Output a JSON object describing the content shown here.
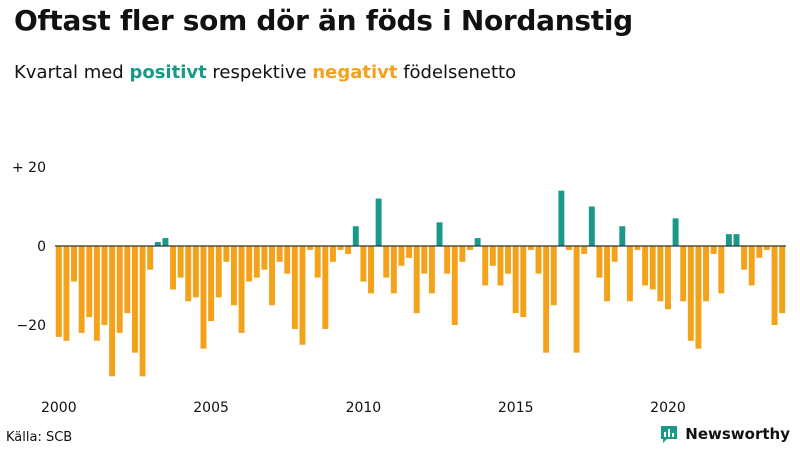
{
  "colors": {
    "positive": "#1a9988",
    "negative": "#f5a21b",
    "text": "#111111",
    "baseline": "#333333"
  },
  "header": {
    "title": "Oftast fler som dör än föds i Nordanstig",
    "subtitle_pre": "Kvartal med ",
    "subtitle_pos": "positivt",
    "subtitle_mid": " respektive ",
    "subtitle_neg": "negativt",
    "subtitle_post": " födelsenetto"
  },
  "footer": {
    "source": "Källa: SCB",
    "brand": "Newsworthy",
    "brand_icon": "bar-chart-icon"
  },
  "chart_data": {
    "type": "bar",
    "title": "Oftast fler som dör än föds i Nordanstig",
    "subtitle": "Kvartal med positivt respektive negativt födelsenetto",
    "xlabel": "",
    "ylabel": "",
    "ylim": [
      -36,
      24
    ],
    "y_ticks": [
      20,
      0,
      -20
    ],
    "y_tick_labels": [
      "+ 20",
      "0",
      "−20"
    ],
    "x_ticks": [
      2000,
      2005,
      2010,
      2015,
      2020
    ],
    "x_tick_labels": [
      "2000",
      "2005",
      "2010",
      "2015",
      "2020"
    ],
    "start_year": 2000,
    "quarters_per_year": 4,
    "categories": [
      "2000 Q1",
      "2000 Q2",
      "2000 Q3",
      "2000 Q4",
      "2001 Q1",
      "2001 Q2",
      "2001 Q3",
      "2001 Q4",
      "2002 Q1",
      "2002 Q2",
      "2002 Q3",
      "2002 Q4",
      "2003 Q1",
      "2003 Q2",
      "2003 Q3",
      "2003 Q4",
      "2004 Q1",
      "2004 Q2",
      "2004 Q3",
      "2004 Q4",
      "2005 Q1",
      "2005 Q2",
      "2005 Q3",
      "2005 Q4",
      "2006 Q1",
      "2006 Q2",
      "2006 Q3",
      "2006 Q4",
      "2007 Q1",
      "2007 Q2",
      "2007 Q3",
      "2007 Q4",
      "2008 Q1",
      "2008 Q2",
      "2008 Q3",
      "2008 Q4",
      "2009 Q1",
      "2009 Q2",
      "2009 Q3",
      "2009 Q4",
      "2010 Q1",
      "2010 Q2",
      "2010 Q3",
      "2010 Q4",
      "2011 Q1",
      "2011 Q2",
      "2011 Q3",
      "2011 Q4",
      "2012 Q1",
      "2012 Q2",
      "2012 Q3",
      "2012 Q4",
      "2013 Q1",
      "2013 Q2",
      "2013 Q3",
      "2013 Q4",
      "2014 Q1",
      "2014 Q2",
      "2014 Q3",
      "2014 Q4",
      "2015 Q1",
      "2015 Q2",
      "2015 Q3",
      "2015 Q4",
      "2016 Q1",
      "2016 Q2",
      "2016 Q3",
      "2016 Q4",
      "2017 Q1",
      "2017 Q2",
      "2017 Q3",
      "2017 Q4",
      "2018 Q1",
      "2018 Q2",
      "2018 Q3",
      "2018 Q4",
      "2019 Q1",
      "2019 Q2",
      "2019 Q3",
      "2019 Q4",
      "2020 Q1",
      "2020 Q2",
      "2020 Q3",
      "2020 Q4",
      "2021 Q1",
      "2021 Q2",
      "2021 Q3",
      "2021 Q4",
      "2022 Q1",
      "2022 Q2",
      "2022 Q3",
      "2022 Q4",
      "2023 Q1",
      "2023 Q2",
      "2023 Q3",
      "2023 Q4"
    ],
    "values": [
      -23,
      -24,
      -9,
      -22,
      -18,
      -24,
      -20,
      -33,
      -22,
      -17,
      -27,
      -33,
      -6,
      1,
      2,
      -11,
      -8,
      -14,
      -13,
      -26,
      -19,
      -13,
      -4,
      -15,
      -22,
      -9,
      -8,
      -6,
      -15,
      -4,
      -7,
      -21,
      -25,
      -1,
      -8,
      -21,
      -4,
      -1,
      -2,
      5,
      -9,
      -12,
      12,
      -8,
      -12,
      -5,
      -3,
      -17,
      -7,
      -12,
      6,
      -7,
      -20,
      -4,
      -1,
      2,
      -10,
      -5,
      -10,
      -7,
      -17,
      -18,
      -1,
      -7,
      -27,
      -15,
      14,
      -1,
      -27,
      -2,
      10,
      -8,
      -14,
      -4,
      5,
      -14,
      -1,
      -10,
      -11,
      -14,
      -16,
      7,
      -14,
      -24,
      -26,
      -14,
      -2,
      -12,
      3,
      3,
      -6,
      -10,
      -3,
      -1,
      -20,
      -17
    ]
  }
}
